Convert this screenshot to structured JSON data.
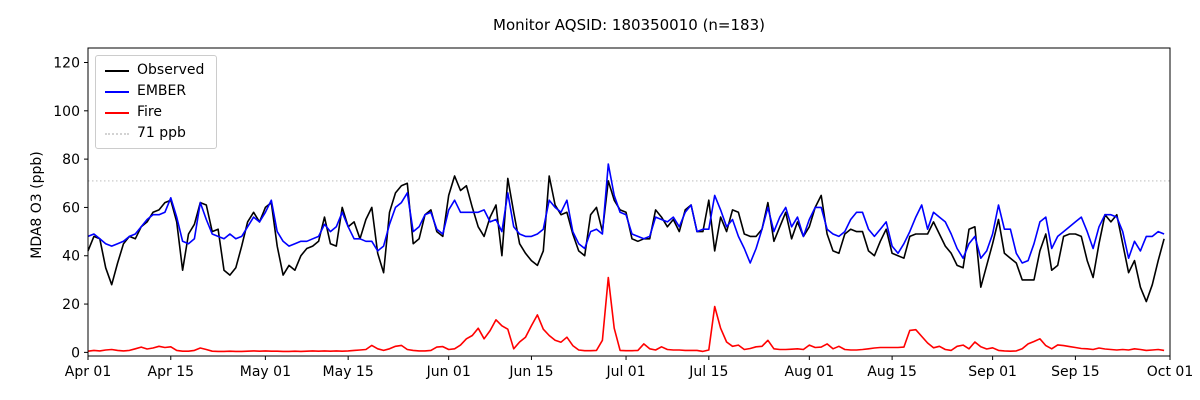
{
  "chart_data": {
    "type": "line",
    "title": "Monitor AQSID: 180350010 (n=183)",
    "xlabel": "",
    "ylabel": "MDA8 O3 (ppb)",
    "ylim": [
      -1.5,
      126
    ],
    "yticks": [
      0,
      20,
      40,
      60,
      80,
      100,
      120
    ],
    "x_range": [
      0,
      183
    ],
    "x_unit": "days since Apr 01",
    "n_points": 183,
    "grid": false,
    "legend_position": "upper left",
    "xtick_labels": [
      "Apr 01",
      "Apr 15",
      "May 01",
      "May 15",
      "Jun 01",
      "Jun 15",
      "Jul 01",
      "Jul 15",
      "Aug 01",
      "Aug 15",
      "Sep 01",
      "Sep 15",
      "Oct 01"
    ],
    "xtick_day_index": [
      0,
      14,
      30,
      44,
      61,
      75,
      91,
      105,
      122,
      136,
      153,
      167,
      183
    ],
    "threshold": {
      "label": "71 ppb",
      "value": 71,
      "color": "#d3d3d3",
      "style": "dotted"
    },
    "series": [
      {
        "name": "Observed",
        "color": "#000000",
        "values": [
          42,
          48,
          47,
          35,
          28,
          37,
          45,
          48,
          47,
          52,
          54,
          58,
          59,
          62,
          63,
          54,
          34,
          49,
          53,
          62,
          61,
          50,
          51,
          34,
          32,
          35,
          44,
          54,
          58,
          54,
          60,
          62,
          44,
          32,
          36,
          34,
          40,
          43,
          44,
          46,
          56,
          45,
          44,
          60,
          52,
          54,
          47,
          55,
          60,
          41,
          33,
          58,
          66,
          69,
          70,
          45,
          47,
          57,
          59,
          50,
          48,
          65,
          73,
          67,
          69,
          60,
          52,
          48,
          56,
          61,
          40,
          72,
          58,
          45,
          41,
          38,
          36,
          42,
          73,
          61,
          57,
          58,
          49,
          42,
          40,
          57,
          60,
          50,
          71,
          63,
          59,
          58,
          47,
          46,
          47,
          47,
          59,
          56,
          52,
          55,
          50,
          59,
          61,
          50,
          50,
          63,
          42,
          56,
          50,
          59,
          58,
          49,
          48,
          48,
          51,
          62,
          46,
          52,
          58,
          47,
          54,
          48,
          52,
          60,
          65,
          49,
          42,
          41,
          49,
          51,
          50,
          50,
          42,
          40,
          46,
          51,
          41,
          40,
          39,
          48,
          49,
          49,
          49,
          54,
          49,
          44,
          41,
          36,
          35,
          51,
          52,
          27,
          36,
          45,
          55,
          41,
          39,
          37,
          30,
          30,
          30,
          42,
          49,
          34,
          36,
          48,
          49,
          49,
          48,
          38,
          31,
          45,
          57,
          54,
          57,
          45,
          33,
          38,
          27,
          21,
          28,
          38,
          47
        ]
      },
      {
        "name": "EMBER",
        "color": "#0000ff",
        "values": [
          48,
          49,
          47,
          45,
          44,
          45,
          46,
          48,
          49,
          52,
          55,
          57,
          57,
          58,
          64,
          56,
          46,
          45,
          47,
          62,
          55,
          49,
          48,
          47,
          49,
          47,
          48,
          52,
          56,
          54,
          58,
          63,
          50,
          46,
          44,
          45,
          46,
          46,
          47,
          48,
          53,
          50,
          52,
          58,
          52,
          47,
          47,
          46,
          46,
          42,
          44,
          53,
          60,
          62,
          66,
          50,
          52,
          57,
          58,
          51,
          49,
          59,
          63,
          58,
          58,
          58,
          58,
          59,
          54,
          55,
          50,
          66,
          52,
          49,
          48,
          48,
          49,
          51,
          63,
          60,
          58,
          63,
          50,
          45,
          43,
          50,
          51,
          49,
          78,
          65,
          58,
          57,
          49,
          48,
          47,
          48,
          56,
          55,
          54,
          56,
          52,
          58,
          61,
          50,
          51,
          51,
          65,
          59,
          52,
          55,
          48,
          43,
          37,
          43,
          51,
          60,
          50,
          56,
          60,
          52,
          56,
          48,
          55,
          60,
          60,
          51,
          49,
          48,
          50,
          55,
          58,
          58,
          51,
          48,
          51,
          54,
          44,
          41,
          45,
          50,
          56,
          61,
          51,
          58,
          56,
          54,
          49,
          43,
          39,
          45,
          48,
          39,
          42,
          49,
          61,
          51,
          51,
          41,
          37,
          38,
          45,
          54,
          56,
          43,
          48,
          50,
          52,
          54,
          56,
          50,
          43,
          52,
          57,
          57,
          56,
          50,
          39,
          46,
          42,
          48,
          48,
          50,
          49
        ]
      },
      {
        "name": "Fire",
        "color": "#ff0000",
        "values": [
          0.5,
          0.8,
          0.6,
          1.0,
          1.2,
          0.8,
          0.6,
          0.8,
          1.5,
          2.2,
          1.4,
          1.8,
          2.5,
          2.0,
          2.3,
          0.8,
          0.5,
          0.5,
          0.8,
          1.8,
          1.2,
          0.5,
          0.4,
          0.4,
          0.5,
          0.4,
          0.4,
          0.5,
          0.6,
          0.5,
          0.6,
          0.5,
          0.5,
          0.4,
          0.4,
          0.5,
          0.4,
          0.5,
          0.6,
          0.5,
          0.6,
          0.5,
          0.6,
          0.5,
          0.6,
          0.8,
          1.0,
          1.2,
          2.9,
          1.5,
          0.8,
          1.5,
          2.5,
          2.9,
          1.2,
          0.8,
          0.6,
          0.6,
          0.8,
          2.2,
          2.4,
          1.2,
          1.5,
          3.0,
          5.6,
          7.0,
          10.0,
          5.6,
          9.0,
          13.5,
          11.0,
          9.6,
          1.5,
          4.3,
          6.3,
          11.0,
          15.5,
          9.6,
          7.0,
          5.0,
          4.2,
          6.3,
          2.8,
          1.0,
          0.7,
          0.7,
          0.8,
          5.0,
          31.0,
          10.0,
          0.8,
          0.7,
          0.7,
          0.8,
          3.5,
          1.5,
          1.0,
          2.3,
          1.2,
          1.0,
          1.0,
          0.8,
          0.8,
          0.8,
          0.4,
          1.0,
          19.0,
          10.0,
          4.3,
          2.5,
          3.0,
          1.2,
          1.6,
          2.3,
          2.5,
          5.0,
          1.5,
          1.2,
          1.2,
          1.3,
          1.5,
          1.2,
          3.0,
          2.0,
          2.2,
          3.5,
          1.5,
          2.5,
          1.2,
          1.0,
          1.0,
          1.2,
          1.5,
          1.8,
          2.0,
          2.0,
          2.0,
          2.0,
          2.2,
          9.1,
          9.4,
          6.6,
          3.9,
          1.9,
          2.5,
          1.2,
          0.8,
          2.5,
          3.0,
          1.5,
          4.3,
          2.3,
          1.4,
          1.9,
          0.8,
          0.6,
          0.5,
          0.6,
          1.5,
          3.5,
          4.5,
          5.6,
          2.8,
          1.5,
          3.1,
          2.8,
          2.4,
          2.0,
          1.6,
          1.5,
          1.2,
          1.8,
          1.4,
          1.2,
          1.0,
          1.2,
          1.0,
          1.5,
          1.2,
          0.8,
          1.0,
          1.2,
          0.8
        ]
      }
    ]
  }
}
